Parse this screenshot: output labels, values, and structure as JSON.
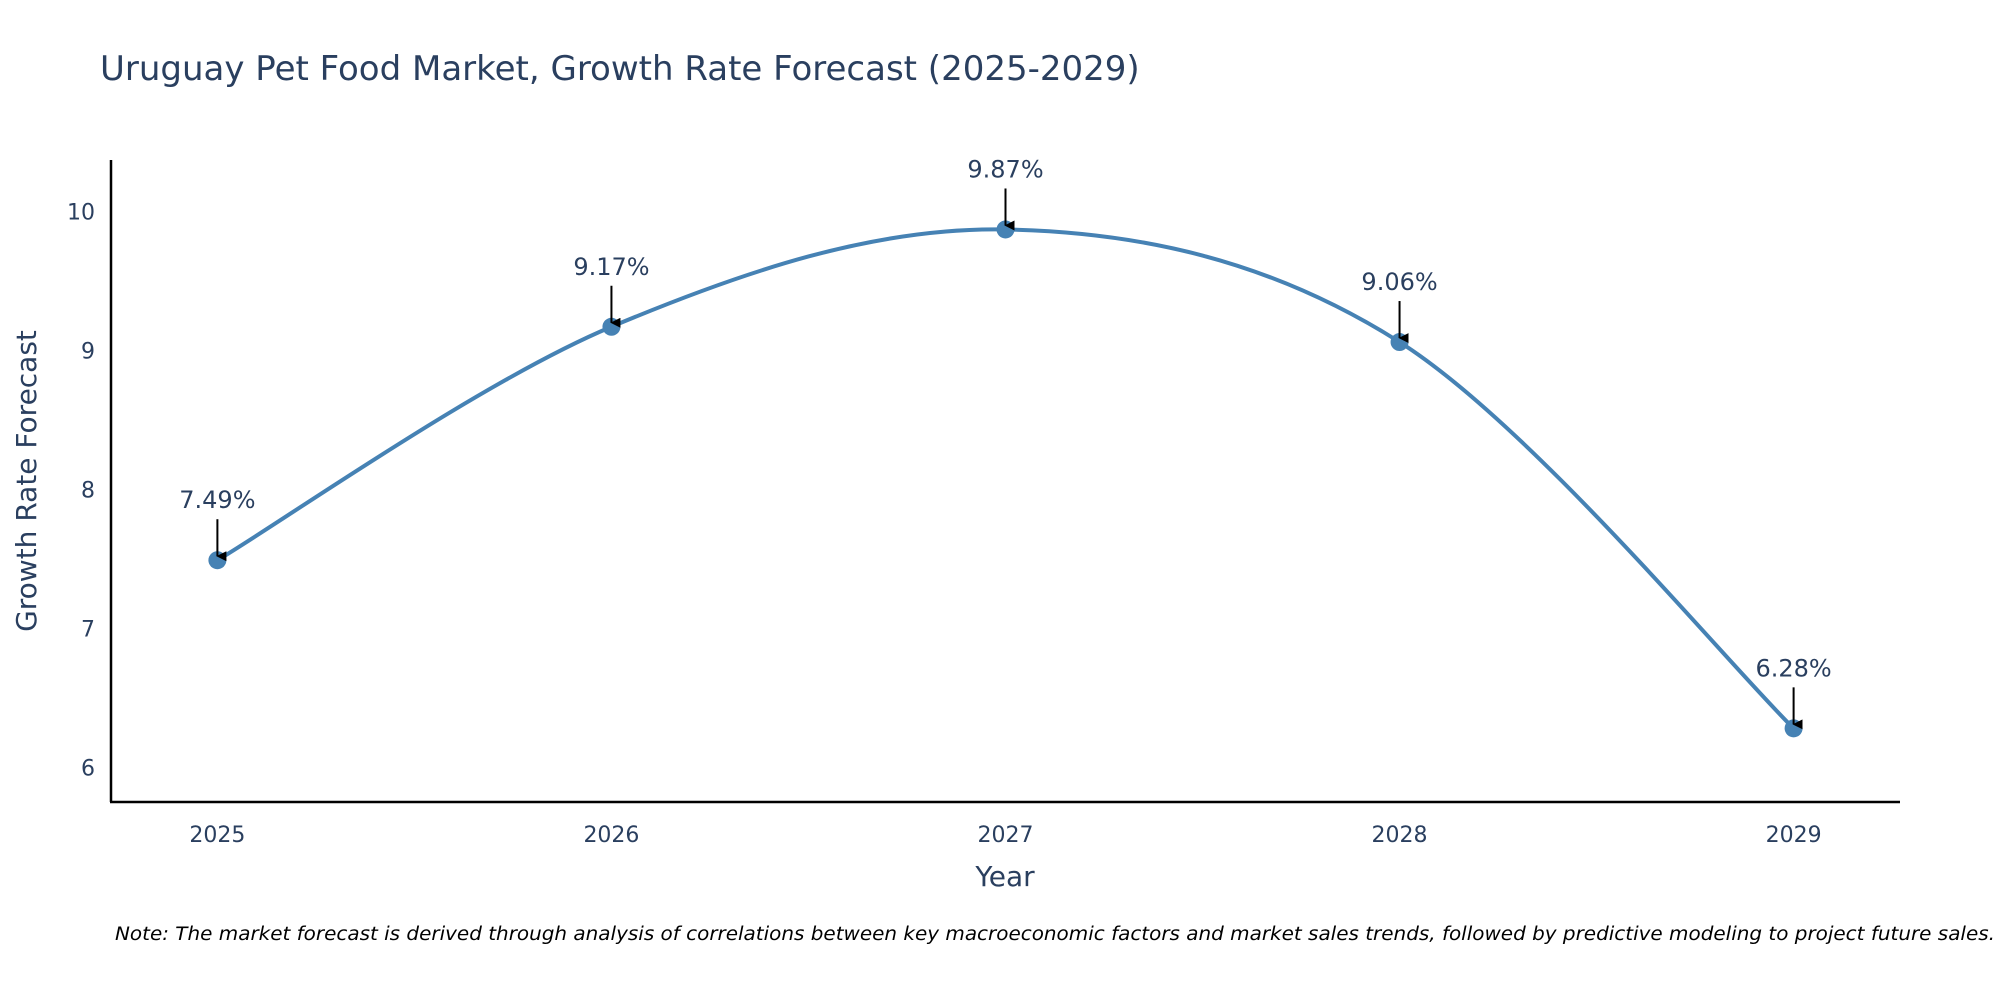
{
  "chart_data": {
    "type": "line",
    "title": "Uruguay Pet Food Market, Growth Rate Forecast (2025-2029)",
    "xlabel": "Year",
    "ylabel": "Growth Rate Forecast",
    "x": [
      "2025",
      "2026",
      "2027",
      "2028",
      "2029"
    ],
    "values": [
      7.49,
      9.17,
      9.87,
      9.06,
      6.28
    ],
    "data_labels": [
      "7.49%",
      "9.17%",
      "9.87%",
      "9.06%",
      "6.28%"
    ],
    "yticks": [
      6,
      7,
      8,
      9,
      10
    ],
    "ylim": [
      5.75,
      10.37
    ],
    "xlim": [
      -0.27,
      4.27
    ],
    "grid": false,
    "line_shape": "spline",
    "marker": "circle",
    "note": "Note: The market forecast is derived through analysis of correlations between key macroeconomic factors and market sales trends, followed by predictive modeling to project future sales."
  },
  "colors": {
    "series": "#4682b4",
    "text": "#2a3f5f",
    "axis": "#000000",
    "arrow": "#000000",
    "background": "#ffffff"
  }
}
